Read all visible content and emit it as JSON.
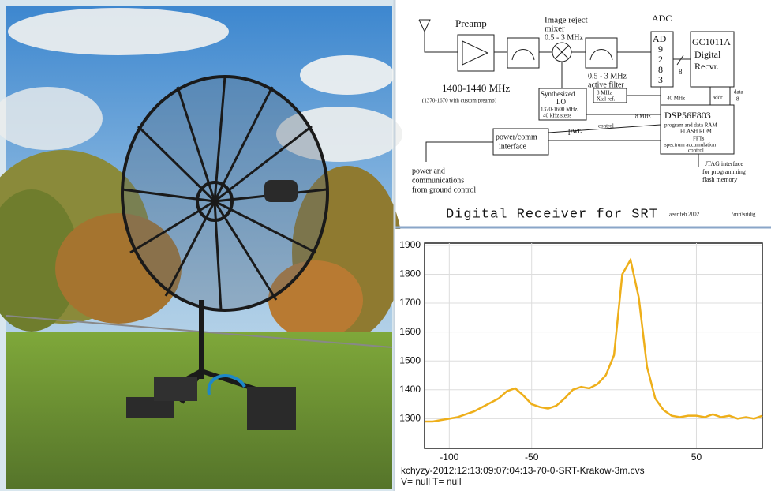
{
  "diagram": {
    "labels": [
      "Preamp",
      "Image reject",
      "mixer",
      "0.5 - 3 MHz",
      "ADC",
      "AD",
      "9",
      "2",
      "8",
      "3",
      "8",
      "GC1011A",
      "Digital",
      "Recvr.",
      "0.5 - 3 MHz",
      "active filter",
      "1400-1440 MHz",
      "(1370-1670 with custom preamp)",
      "Synthesized",
      "LO",
      "1370-1600 MHz",
      "40 kHz steps",
      "8 MHz",
      "Xtal ref.",
      "40 MHz",
      "addr",
      "data",
      "8",
      "DSP56F803",
      "program and data RAM",
      "FLASH ROM",
      "FFTs",
      "spectrum accumulation",
      "control",
      "8 MHz",
      "control",
      "power/comm",
      "interface",
      "pwr.",
      "power and",
      "communications",
      "from ground control",
      "JTAG interface",
      "for programming",
      "flash memory",
      "Digital Receiver for SRT",
      "aeer feb 2002",
      "\\mri\\srtdig"
    ]
  },
  "chart_data": {
    "type": "line",
    "x": [
      -115,
      -110,
      -105,
      -100,
      -95,
      -90,
      -85,
      -80,
      -75,
      -70,
      -65,
      -60,
      -55,
      -50,
      -45,
      -40,
      -35,
      -30,
      -25,
      -20,
      -15,
      -10,
      -5,
      0,
      5,
      10,
      15,
      20,
      25,
      30,
      35,
      40,
      45,
      50,
      55,
      60,
      65,
      70,
      75,
      80,
      85,
      90
    ],
    "series": [
      {
        "color": "#eeaf1a",
        "values": [
          1290,
          1290,
          1295,
          1300,
          1305,
          1315,
          1325,
          1340,
          1355,
          1370,
          1395,
          1405,
          1380,
          1350,
          1340,
          1335,
          1345,
          1370,
          1400,
          1410,
          1405,
          1420,
          1450,
          1520,
          1800,
          1850,
          1720,
          1480,
          1370,
          1330,
          1310,
          1305,
          1310,
          1310,
          1305,
          1315,
          1305,
          1310,
          1300,
          1305,
          1300,
          1310
        ]
      }
    ],
    "xlim": [
      -115,
      90
    ],
    "ylim": [
      1197,
      1908
    ],
    "xticks": [
      -100,
      -50,
      50
    ],
    "yticks": [
      1300,
      1400,
      1500,
      1600,
      1700,
      1800,
      1900
    ],
    "grid": true,
    "caption": [
      "kchyzy-2012:12:13:09:07:04:13-70-0-SRT-Krakow-3m.cvs",
      "V= null T= null"
    ]
  }
}
